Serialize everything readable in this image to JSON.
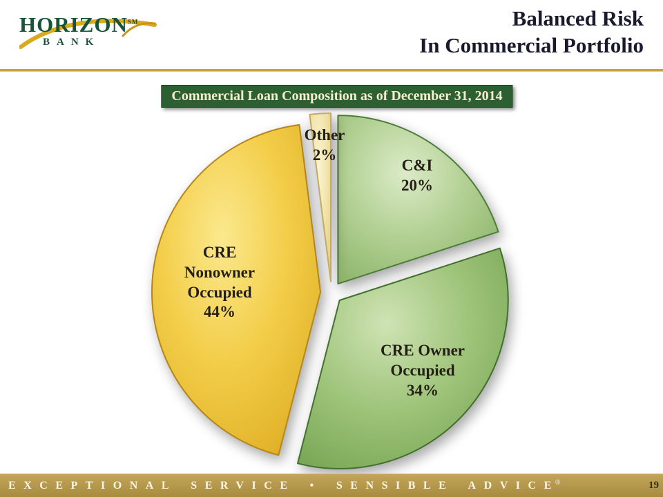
{
  "logo": {
    "name": "HORIZON",
    "tm": "SM",
    "sub": "BANK"
  },
  "header": {
    "title_line1": "Balanced Risk",
    "title_line2": "In Commercial Portfolio"
  },
  "banner": {
    "text": "Commercial Loan Composition as of December 31, 2014"
  },
  "chart_data": {
    "type": "pie",
    "title": "Commercial Loan Composition as of December 31, 2014",
    "start_angle_deg": 0,
    "direction": "clockwise",
    "exploded": true,
    "slices": [
      {
        "label": "C&I",
        "value": 20,
        "pct_label": "20%",
        "color_light": "#dcebc8",
        "color_mid": "#b2d093",
        "color_dark": "#8ab368",
        "edge": "#4e7d3a"
      },
      {
        "label": "CRE Owner Occupied",
        "value": 34,
        "pct_label": "34%",
        "color_light": "#cfe3b4",
        "color_mid": "#a0c57c",
        "color_dark": "#74a350",
        "edge": "#41702c"
      },
      {
        "label": "CRE Nonowner Occupied",
        "value": 44,
        "pct_label": "44%",
        "color_light": "#fbe98e",
        "color_mid": "#f3cd48",
        "color_dark": "#ddac22",
        "edge": "#b5861a"
      },
      {
        "label": "Other",
        "value": 2,
        "pct_label": "2%",
        "color_light": "#faf3d2",
        "color_mid": "#f2e5ae",
        "color_dark": "#e2cd83",
        "edge": "#c3ab63"
      }
    ]
  },
  "footer": {
    "tagline": "EXCEPTIONAL SERVICE • SENSIBLE ADVICE",
    "reg": "®",
    "page": "19"
  }
}
